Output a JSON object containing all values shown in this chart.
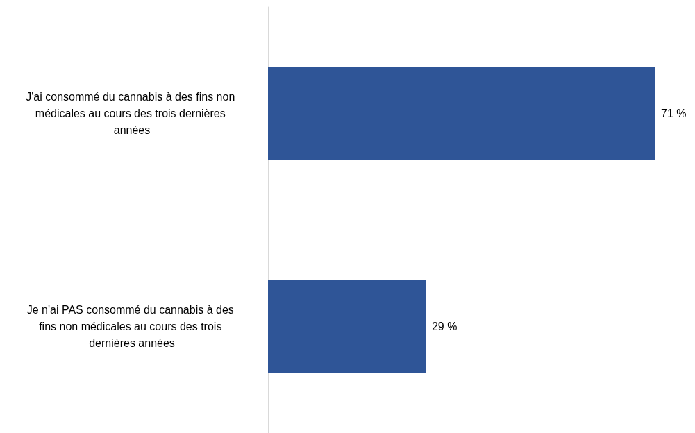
{
  "chart_data": {
    "type": "bar",
    "orientation": "horizontal",
    "categories": [
      "J'ai consommé du cannabis à des fins non médicales au cours des trois dernières années",
      "Je n'ai PAS consommé du cannabis à des fins non médicales au cours des trois dernières années"
    ],
    "values": [
      71,
      29
    ],
    "value_labels": [
      "71 %",
      "29 %"
    ],
    "color": "#2f5597"
  }
}
